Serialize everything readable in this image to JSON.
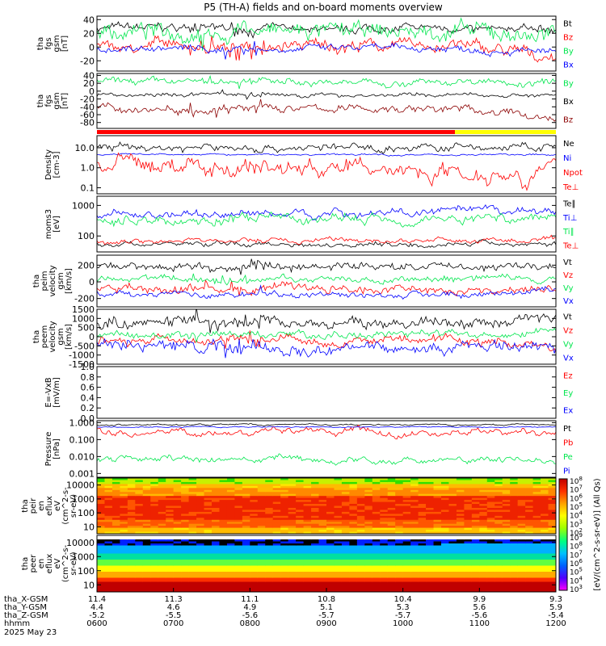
{
  "title": "P5 (TH-A) fields and on-board moments overview",
  "colors": {
    "black": "#000000",
    "red": "#ff0000",
    "green": "#00e64d",
    "blue": "#0000ff",
    "darkred": "#8b0000",
    "yellow": "#ffff00"
  },
  "chart_data": {
    "type": "line",
    "time_axis": {
      "ticks": [
        "0600",
        "0700",
        "0800",
        "0900",
        "1000",
        "1100",
        "1200"
      ],
      "label_hhmm": "hhmm",
      "date": "2025 May 23"
    },
    "orbit": {
      "rows": [
        {
          "label": "tha_X-GSM",
          "values": [
            "11.4",
            "11.3",
            "11.1",
            "10.8",
            "10.4",
            "9.9",
            "9.3"
          ]
        },
        {
          "label": "tha_Y-GSM",
          "values": [
            "4.4",
            "4.6",
            "4.9",
            "5.1",
            "5.3",
            "5.6",
            "5.9"
          ]
        },
        {
          "label": "tha_Z-GSM",
          "values": [
            "-5.2",
            "-5.5",
            "-5.6",
            "-5.7",
            "-5.7",
            "-5.6",
            "-5.4"
          ]
        }
      ]
    },
    "mode_bar": {
      "segments": [
        {
          "color": "red",
          "start": 0.0,
          "end": 0.78
        },
        {
          "color": "yellow",
          "start": 0.78,
          "end": 1.0
        }
      ]
    },
    "panels": [
      {
        "ylabel": [
          "tha",
          "fgs",
          "gsm",
          "[nT]"
        ],
        "ticks": [
          "40",
          "20",
          "0",
          "-20"
        ],
        "ylim": [
          -35,
          45
        ],
        "series": [
          {
            "name": "Bt",
            "color": "black",
            "base": 28,
            "noise": 6,
            "drift": -2
          },
          {
            "name": "Bz",
            "color": "red",
            "base": 2,
            "noise": 9,
            "drift": -18
          },
          {
            "name": "By",
            "color": "green",
            "base": 22,
            "noise": 12,
            "drift": -6
          },
          {
            "name": "Bx",
            "color": "blue",
            "base": -2,
            "noise": 5,
            "drift": -6
          }
        ]
      },
      {
        "ylabel": [
          "tha",
          "fgs",
          "gsm",
          "[nT]"
        ],
        "ticks": [
          "40",
          "20",
          "0",
          "-20",
          "-40",
          "-60",
          "-80"
        ],
        "ylim": [
          -95,
          45
        ],
        "series": [
          {
            "name": "By",
            "color": "green",
            "base": 24,
            "noise": 8,
            "drift": -2
          },
          {
            "name": "Bx",
            "color": "black",
            "base": -10,
            "noise": 5,
            "drift": 0
          },
          {
            "name": "Bz",
            "color": "darkred",
            "base": -45,
            "noise": 10,
            "drift": -25
          }
        ]
      },
      {
        "ylabel": [
          "Density",
          "[cm-3]"
        ],
        "ticks": [
          "10.0",
          "1.0",
          "0.1"
        ],
        "ylim": [
          0.05,
          40
        ],
        "log": true,
        "series": [
          {
            "name": "Ne",
            "color": "black",
            "base": 10,
            "noise": 0.12,
            "drift": 0
          },
          {
            "name": "Ni",
            "color": "blue",
            "base": 4.5,
            "noise": 0.03,
            "drift": 0
          },
          {
            "name": "Npot",
            "color": "red",
            "base": 1.5,
            "noise": 0.28,
            "drift": -0.4
          },
          {
            "name": "Te⊥",
            "color": "none"
          }
        ]
      },
      {
        "ylabel": [
          "moms3",
          "[eV]"
        ],
        "ticks": [
          "1000",
          "100"
        ],
        "ylim": [
          30,
          2000
        ],
        "log": true,
        "series": [
          {
            "name": "Te∥",
            "color": "black",
            "base": 55,
            "noise": 0.05,
            "drift": 0
          },
          {
            "name": "Ti⊥",
            "color": "blue",
            "base": 500,
            "noise": 0.08,
            "drift": 0.1
          },
          {
            "name": "Ti∥",
            "color": "green",
            "base": 320,
            "noise": 0.1,
            "drift": 0.1
          },
          {
            "name": "Te⊥",
            "color": "red",
            "base": 70,
            "noise": 0.05,
            "drift": 0
          }
        ]
      },
      {
        "ylabel": [
          "tha",
          "peim",
          "velocity",
          "gsm",
          "[km/s]"
        ],
        "ticks": [
          "200",
          "0",
          "-200"
        ],
        "ylim": [
          -300,
          320
        ],
        "series": [
          {
            "name": "Vt",
            "color": "black",
            "base": 190,
            "noise": 45,
            "drift": -10
          },
          {
            "name": "Vz",
            "color": "red",
            "base": -90,
            "noise": 50,
            "drift": 0
          },
          {
            "name": "Vy",
            "color": "green",
            "base": 30,
            "noise": 40,
            "drift": 20
          },
          {
            "name": "Vx",
            "color": "blue",
            "base": -140,
            "noise": 35,
            "drift": 50
          }
        ]
      },
      {
        "ylabel": [
          "tha",
          "peem",
          "velocity",
          "gsm",
          "[km/s]"
        ],
        "ticks": [
          "1500",
          "1000",
          "500",
          "0",
          "-500",
          "-1000",
          "-1500"
        ],
        "ylim": [
          -1500,
          1500
        ],
        "series": [
          {
            "name": "Vt",
            "color": "black",
            "base": 700,
            "noise": 320,
            "drift": 300
          },
          {
            "name": "Vz",
            "color": "red",
            "base": -150,
            "noise": 250,
            "drift": -500
          },
          {
            "name": "Vy",
            "color": "green",
            "base": 100,
            "noise": 200,
            "drift": 250
          },
          {
            "name": "Vx",
            "color": "blue",
            "base": -550,
            "noise": 300,
            "drift": -200
          }
        ]
      },
      {
        "ylabel": [
          "E=-VxB",
          "[mV/m]"
        ],
        "ticks": [
          "1.0",
          "0.8",
          "0.6",
          "0.4",
          "0.2",
          "0.0"
        ],
        "ylim": [
          0,
          1
        ],
        "series": [
          {
            "name": "Ez",
            "color": "red",
            "empty": true
          },
          {
            "name": "Ey",
            "color": "green",
            "empty": true
          },
          {
            "name": "Ex",
            "color": "blue",
            "empty": true
          }
        ]
      },
      {
        "ylabel": [
          "Pressure",
          "[nPa]"
        ],
        "ticks": [
          "1.000",
          "0.100",
          "0.010",
          "0.001"
        ],
        "ylim": [
          0.0006,
          1.3
        ],
        "log": true,
        "series": [
          {
            "name": "Pt",
            "color": "black",
            "base": 0.75,
            "noise": 0.03,
            "drift": 0
          },
          {
            "name": "Pb",
            "color": "red",
            "base": 0.3,
            "noise": 0.12,
            "drift": -0.1
          },
          {
            "name": "Pe",
            "color": "green",
            "base": 0.006,
            "noise": 0.12,
            "drift": 0
          },
          {
            "name": "Pi",
            "color": "blue",
            "base": 0.55,
            "noise": 0.02,
            "drift": 0
          }
        ]
      },
      {
        "ylabel": [
          "tha",
          "peir",
          "en",
          "eflux",
          "eV",
          "(cm^2-s-",
          "sr-eV)"
        ],
        "ticks": [
          "10000",
          "1000",
          "100",
          "10"
        ],
        "spectrogram": "ion"
      },
      {
        "ylabel": [
          "tha",
          "peer",
          "en",
          "eflux",
          "eV",
          "(cm^2-s-",
          "sr-eV)"
        ],
        "ticks": [
          "10000",
          "1000",
          "100",
          "10"
        ],
        "spectrogram": "electron"
      }
    ],
    "colorbar": {
      "label": "[eV/(cm^2-s-sr-eV)] (All Qs)",
      "ticks_upper": [
        "10^8",
        "10^7",
        "10^6",
        "10^5",
        "10^4",
        "10^3",
        "10^2"
      ],
      "ticks_lower": [
        "10^9",
        "10^8",
        "10^7",
        "10^6",
        "10^5",
        "10^4",
        "10^3"
      ]
    }
  }
}
